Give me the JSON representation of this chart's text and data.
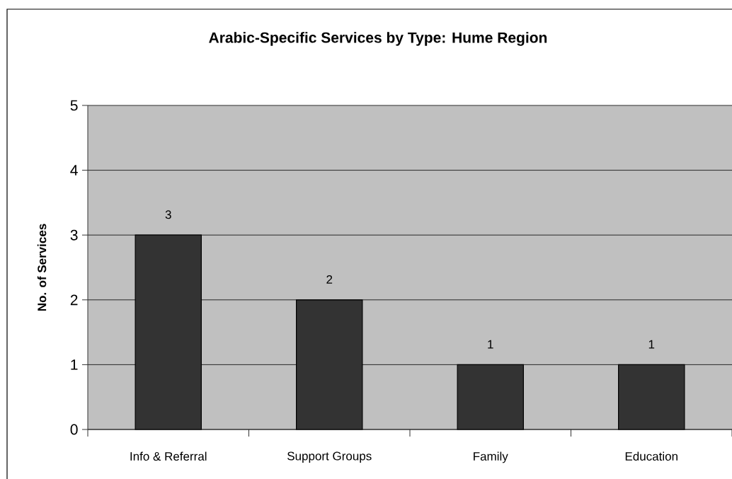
{
  "chart_data": {
    "type": "bar",
    "title": "Arabic-Specific Services by Type: Hume Region",
    "ylabel": "No. of Services",
    "categories": [
      "Info & Referral",
      "Support Groups",
      "Family",
      "Education"
    ],
    "values": [
      3,
      2,
      1,
      1
    ],
    "color": "#333333",
    "ylim": [
      0,
      5
    ],
    "yticks": [
      0,
      1,
      2,
      3,
      4,
      5
    ],
    "grid": "y",
    "data_labels": true
  }
}
